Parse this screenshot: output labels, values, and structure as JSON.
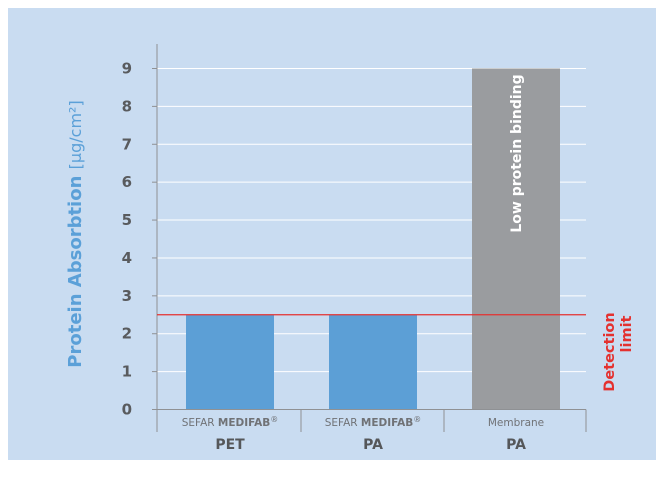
{
  "chart_data": {
    "type": "bar",
    "ylabel": "Protein Absorbtion",
    "ylabel_unit": "[µg/cm²]",
    "ylim": [
      0,
      9
    ],
    "yticks": [
      0,
      1,
      2,
      3,
      4,
      5,
      6,
      7,
      8,
      9
    ],
    "grid": true,
    "categories": [
      {
        "sub_prefix": "SEFAR ",
        "sub_bold": "MEDIFAB",
        "sub_suffix": "®",
        "label": "PET"
      },
      {
        "sub_prefix": "SEFAR ",
        "sub_bold": "MEDIFAB",
        "sub_suffix": "®",
        "label": "PA"
      },
      {
        "sub_prefix": "Membrane",
        "sub_bold": "",
        "sub_suffix": "",
        "label": "PA"
      }
    ],
    "values": [
      2.5,
      2.5,
      9
    ],
    "bar_colors": [
      "#5c9fd6",
      "#5c9fd6",
      "#9a9c9f"
    ],
    "bar_annotations": [
      "",
      "",
      "Low protein binding"
    ],
    "reference_line": {
      "value": 2.5,
      "label_line1": "Detection",
      "label_line2": "limit",
      "color": "#e4312f"
    }
  }
}
